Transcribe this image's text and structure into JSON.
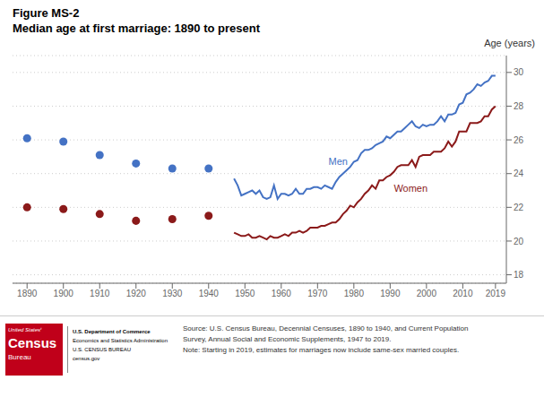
{
  "chart_data": {
    "type": "line",
    "title": "Figure MS-2",
    "subtitle": "Median age at first marriage: 1890 to present",
    "y_label": "Age (years)",
    "xlim": [
      1886,
      2022
    ],
    "xticks": [
      1890,
      1900,
      1910,
      1920,
      1930,
      1940,
      1950,
      1960,
      1970,
      1980,
      1990,
      2000,
      2010,
      2019
    ],
    "ylim": [
      17.5,
      31.0
    ],
    "yticks": [
      18,
      20,
      22,
      24,
      26,
      28,
      30
    ],
    "grid": true,
    "series": [
      {
        "name": "Men",
        "type": "scatter",
        "color": "#4472C4",
        "x": [
          1890,
          1900,
          1910,
          1920,
          1930,
          1940
        ],
        "values": [
          26.1,
          25.9,
          25.1,
          24.6,
          24.3,
          24.3
        ]
      },
      {
        "name": "Women",
        "type": "scatter",
        "color": "#8B1A1A",
        "x": [
          1890,
          1900,
          1910,
          1920,
          1930,
          1940
        ],
        "values": [
          22.0,
          21.9,
          21.6,
          21.2,
          21.3,
          21.5
        ]
      },
      {
        "name": "Men",
        "type": "line",
        "color": "#4472C4",
        "x": [
          1947,
          1948,
          1949,
          1950,
          1951,
          1952,
          1953,
          1954,
          1955,
          1956,
          1957,
          1958,
          1959,
          1960,
          1961,
          1962,
          1963,
          1964,
          1965,
          1966,
          1967,
          1968,
          1969,
          1970,
          1971,
          1972,
          1973,
          1974,
          1975,
          1976,
          1977,
          1978,
          1979,
          1980,
          1981,
          1982,
          1983,
          1984,
          1985,
          1986,
          1987,
          1988,
          1989,
          1990,
          1991,
          1992,
          1993,
          1994,
          1995,
          1996,
          1997,
          1998,
          1999,
          2000,
          2001,
          2002,
          2003,
          2004,
          2005,
          2006,
          2007,
          2008,
          2009,
          2010,
          2011,
          2012,
          2013,
          2014,
          2015,
          2016,
          2017,
          2018,
          2019
        ],
        "values": [
          23.7,
          23.3,
          22.7,
          22.8,
          22.9,
          23.0,
          22.8,
          23.0,
          22.6,
          22.5,
          22.6,
          23.3,
          22.5,
          22.8,
          22.8,
          22.7,
          22.8,
          23.1,
          22.8,
          22.8,
          23.1,
          23.1,
          23.2,
          23.2,
          23.1,
          23.3,
          23.2,
          23.1,
          23.5,
          23.8,
          24.0,
          24.2,
          24.4,
          24.7,
          24.8,
          25.2,
          25.4,
          25.4,
          25.5,
          25.7,
          25.8,
          25.9,
          26.2,
          26.1,
          26.3,
          26.5,
          26.5,
          26.7,
          26.9,
          27.1,
          26.8,
          26.7,
          26.9,
          26.8,
          26.9,
          26.9,
          27.1,
          27.4,
          27.1,
          27.5,
          27.5,
          27.6,
          28.1,
          28.2,
          28.7,
          28.8,
          29.0,
          29.3,
          29.2,
          29.4,
          29.5,
          29.8,
          29.8
        ]
      },
      {
        "name": "Women",
        "type": "line",
        "color": "#8B1A1A",
        "x": [
          1947,
          1948,
          1949,
          1950,
          1951,
          1952,
          1953,
          1954,
          1955,
          1956,
          1957,
          1958,
          1959,
          1960,
          1961,
          1962,
          1963,
          1964,
          1965,
          1966,
          1967,
          1968,
          1969,
          1970,
          1971,
          1972,
          1973,
          1974,
          1975,
          1976,
          1977,
          1978,
          1979,
          1980,
          1981,
          1982,
          1983,
          1984,
          1985,
          1986,
          1987,
          1988,
          1989,
          1990,
          1991,
          1992,
          1993,
          1994,
          1995,
          1996,
          1997,
          1998,
          1999,
          2000,
          2001,
          2002,
          2003,
          2004,
          2005,
          2006,
          2007,
          2008,
          2009,
          2010,
          2011,
          2012,
          2013,
          2014,
          2015,
          2016,
          2017,
          2018,
          2019
        ],
        "values": [
          20.5,
          20.4,
          20.3,
          20.3,
          20.4,
          20.2,
          20.2,
          20.3,
          20.2,
          20.1,
          20.3,
          20.2,
          20.2,
          20.3,
          20.4,
          20.3,
          20.5,
          20.5,
          20.6,
          20.5,
          20.6,
          20.8,
          20.8,
          20.8,
          20.9,
          20.9,
          21.0,
          21.1,
          21.1,
          21.3,
          21.6,
          21.8,
          22.1,
          22.0,
          22.3,
          22.5,
          22.8,
          23.0,
          23.3,
          23.1,
          23.6,
          23.6,
          23.8,
          23.9,
          24.1,
          24.4,
          24.5,
          24.5,
          24.5,
          24.8,
          24.4,
          25.0,
          25.1,
          25.1,
          25.1,
          25.3,
          25.3,
          25.3,
          25.5,
          25.9,
          25.6,
          25.9,
          26.5,
          26.5,
          26.5,
          27.0,
          27.0,
          27.0,
          27.1,
          27.4,
          27.4,
          27.8,
          28.0
        ]
      }
    ],
    "annotations": [
      {
        "text": "Men",
        "x": 1973,
        "y": 24.4,
        "color": "#4472C4"
      },
      {
        "text": "Women",
        "x": 1991,
        "y": 22.8,
        "color": "#8B1A1A"
      }
    ],
    "source": "Source: U.S. Census Bureau, Decennial Censuses, 1890 to 1940, and Current Population\nSurvey, Annual Social and Economic Supplements, 1947 to 2019.\nNote: Starting in 2019, estimates for marriages now include same-sex married couples.",
    "logo": {
      "color": "#C0001A",
      "box_texts": [
        "United Statesᵗ",
        "Census",
        "Bureau"
      ],
      "side_texts": [
        "U.S. Department of Commerce",
        "Economics and Statistics Administration",
        "U.S. CENSUS BUREAU",
        "census.gov"
      ]
    }
  }
}
